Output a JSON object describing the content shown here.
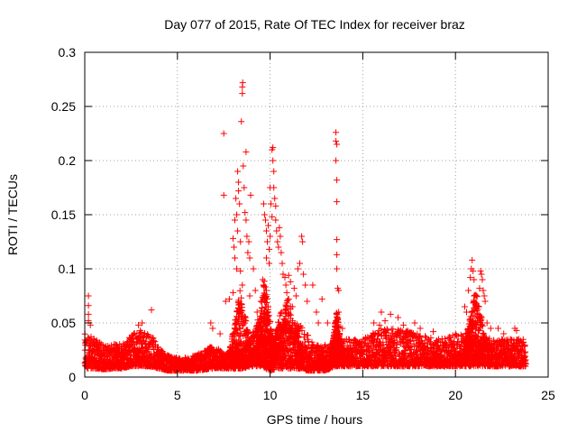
{
  "chart_data": {
    "type": "scatter",
    "title": "Day 077 of 2015, Rate Of TEC Index for receiver braz",
    "xlabel": "GPS time / hours",
    "ylabel": "ROTI / TECUs",
    "xlim": [
      0,
      25
    ],
    "ylim": [
      0,
      0.3
    ],
    "x_ticks": [
      "0",
      "5",
      "10",
      "15",
      "20",
      "25"
    ],
    "y_ticks": [
      "0",
      "0.05",
      "0.1",
      "0.15",
      "0.2",
      "0.25",
      "0.3"
    ],
    "grid": true,
    "marker": "+",
    "color": "#ff0000",
    "baseline_envelope": [
      {
        "x": 0.0,
        "low": 0.008,
        "high": 0.04
      },
      {
        "x": 0.5,
        "low": 0.008,
        "high": 0.036
      },
      {
        "x": 1.0,
        "low": 0.007,
        "high": 0.03
      },
      {
        "x": 1.5,
        "low": 0.008,
        "high": 0.03
      },
      {
        "x": 2.0,
        "low": 0.008,
        "high": 0.032
      },
      {
        "x": 2.5,
        "low": 0.01,
        "high": 0.04
      },
      {
        "x": 3.0,
        "low": 0.01,
        "high": 0.045
      },
      {
        "x": 3.5,
        "low": 0.01,
        "high": 0.04
      },
      {
        "x": 4.0,
        "low": 0.008,
        "high": 0.03
      },
      {
        "x": 4.5,
        "low": 0.006,
        "high": 0.02
      },
      {
        "x": 5.0,
        "low": 0.006,
        "high": 0.018
      },
      {
        "x": 5.5,
        "low": 0.006,
        "high": 0.018
      },
      {
        "x": 6.0,
        "low": 0.006,
        "high": 0.02
      },
      {
        "x": 6.5,
        "low": 0.007,
        "high": 0.025
      },
      {
        "x": 7.0,
        "low": 0.008,
        "high": 0.03
      },
      {
        "x": 7.5,
        "low": 0.008,
        "high": 0.022
      },
      {
        "x": 8.0,
        "low": 0.008,
        "high": 0.025
      },
      {
        "x": 8.5,
        "low": 0.008,
        "high": 0.025
      },
      {
        "x": 9.0,
        "low": 0.01,
        "high": 0.04
      },
      {
        "x": 9.5,
        "low": 0.01,
        "high": 0.06
      },
      {
        "x": 10.0,
        "low": 0.006,
        "high": 0.035
      },
      {
        "x": 10.5,
        "low": 0.008,
        "high": 0.05
      },
      {
        "x": 11.0,
        "low": 0.008,
        "high": 0.06
      },
      {
        "x": 11.5,
        "low": 0.008,
        "high": 0.05
      },
      {
        "x": 12.0,
        "low": 0.006,
        "high": 0.04
      },
      {
        "x": 12.5,
        "low": 0.006,
        "high": 0.03
      },
      {
        "x": 13.0,
        "low": 0.006,
        "high": 0.03
      },
      {
        "x": 13.5,
        "low": 0.01,
        "high": 0.035
      },
      {
        "x": 14.0,
        "low": 0.01,
        "high": 0.035
      },
      {
        "x": 15.0,
        "low": 0.01,
        "high": 0.035
      },
      {
        "x": 16.0,
        "low": 0.01,
        "high": 0.045
      },
      {
        "x": 17.0,
        "low": 0.01,
        "high": 0.045
      },
      {
        "x": 18.0,
        "low": 0.01,
        "high": 0.04
      },
      {
        "x": 19.0,
        "low": 0.01,
        "high": 0.035
      },
      {
        "x": 20.0,
        "low": 0.01,
        "high": 0.04
      },
      {
        "x": 21.0,
        "low": 0.01,
        "high": 0.04
      },
      {
        "x": 22.0,
        "low": 0.01,
        "high": 0.035
      },
      {
        "x": 23.0,
        "low": 0.01,
        "high": 0.035
      },
      {
        "x": 23.8,
        "low": 0.01,
        "high": 0.035
      }
    ],
    "outlier_points": [
      [
        0.2,
        0.075
      ],
      [
        0.2,
        0.066
      ],
      [
        0.2,
        0.058
      ],
      [
        0.2,
        0.052
      ],
      [
        0.3,
        0.048
      ],
      [
        3.6,
        0.062
      ],
      [
        3.1,
        0.05
      ],
      [
        2.9,
        0.048
      ],
      [
        6.8,
        0.05
      ],
      [
        6.9,
        0.045
      ],
      [
        7.3,
        0.04
      ],
      [
        7.5,
        0.225
      ],
      [
        7.5,
        0.168
      ],
      [
        7.6,
        0.07
      ],
      [
        7.8,
        0.072
      ],
      [
        8.0,
        0.078
      ],
      [
        8.0,
        0.128
      ],
      [
        8.05,
        0.12
      ],
      [
        8.1,
        0.145
      ],
      [
        8.1,
        0.11
      ],
      [
        8.15,
        0.165
      ],
      [
        8.2,
        0.15
      ],
      [
        8.2,
        0.1
      ],
      [
        8.25,
        0.19
      ],
      [
        8.25,
        0.135
      ],
      [
        8.3,
        0.18
      ],
      [
        8.3,
        0.172
      ],
      [
        8.35,
        0.16
      ],
      [
        8.4,
        0.125
      ],
      [
        8.4,
        0.098
      ],
      [
        8.45,
        0.236
      ],
      [
        8.5,
        0.262
      ],
      [
        8.5,
        0.268
      ],
      [
        8.52,
        0.272
      ],
      [
        8.55,
        0.195
      ],
      [
        8.6,
        0.175
      ],
      [
        8.65,
        0.152
      ],
      [
        8.7,
        0.208
      ],
      [
        8.7,
        0.145
      ],
      [
        8.75,
        0.13
      ],
      [
        8.8,
        0.115
      ],
      [
        8.85,
        0.125
      ],
      [
        8.9,
        0.11
      ],
      [
        8.95,
        0.168
      ],
      [
        8.5,
        0.085
      ],
      [
        8.9,
        0.075
      ],
      [
        9.1,
        0.1
      ],
      [
        9.2,
        0.08
      ],
      [
        9.3,
        0.06
      ],
      [
        9.5,
        0.07
      ],
      [
        9.6,
        0.09
      ],
      [
        9.65,
        0.085
      ],
      [
        9.7,
        0.075
      ],
      [
        9.8,
        0.08
      ],
      [
        9.9,
        0.065
      ],
      [
        9.95,
        0.118
      ],
      [
        9.8,
        0.11
      ],
      [
        9.65,
        0.16
      ],
      [
        9.7,
        0.15
      ],
      [
        9.75,
        0.145
      ],
      [
        9.8,
        0.135
      ],
      [
        9.85,
        0.125
      ],
      [
        9.9,
        0.14
      ],
      [
        9.95,
        0.105
      ],
      [
        10.0,
        0.175
      ],
      [
        10.0,
        0.13
      ],
      [
        10.05,
        0.16
      ],
      [
        10.1,
        0.148
      ],
      [
        10.1,
        0.21
      ],
      [
        10.15,
        0.212
      ],
      [
        10.15,
        0.2
      ],
      [
        10.2,
        0.19
      ],
      [
        10.2,
        0.175
      ],
      [
        10.25,
        0.165
      ],
      [
        10.3,
        0.158
      ],
      [
        10.3,
        0.145
      ],
      [
        10.35,
        0.135
      ],
      [
        10.4,
        0.125
      ],
      [
        10.45,
        0.12
      ],
      [
        10.5,
        0.138
      ],
      [
        10.55,
        0.13
      ],
      [
        10.6,
        0.115
      ],
      [
        10.65,
        0.105
      ],
      [
        10.7,
        0.095
      ],
      [
        10.8,
        0.092
      ],
      [
        10.85,
        0.085
      ],
      [
        10.9,
        0.078
      ],
      [
        11.0,
        0.094
      ],
      [
        11.0,
        0.072
      ],
      [
        11.1,
        0.088
      ],
      [
        11.2,
        0.065
      ],
      [
        11.3,
        0.082
      ],
      [
        11.4,
        0.075
      ],
      [
        11.5,
        0.1
      ],
      [
        11.6,
        0.105
      ],
      [
        11.7,
        0.13
      ],
      [
        11.75,
        0.125
      ],
      [
        11.8,
        0.095
      ],
      [
        11.9,
        0.085
      ],
      [
        12.0,
        0.07
      ],
      [
        12.3,
        0.085
      ],
      [
        12.5,
        0.06
      ],
      [
        12.8,
        0.072
      ],
      [
        12.6,
        0.05
      ],
      [
        13.1,
        0.05
      ],
      [
        13.55,
        0.226
      ],
      [
        13.55,
        0.218
      ],
      [
        13.6,
        0.215
      ],
      [
        13.55,
        0.2
      ],
      [
        13.6,
        0.182
      ],
      [
        13.6,
        0.162
      ],
      [
        13.6,
        0.127
      ],
      [
        13.6,
        0.113
      ],
      [
        13.6,
        0.1
      ],
      [
        13.65,
        0.082
      ],
      [
        13.7,
        0.08
      ],
      [
        13.7,
        0.06
      ],
      [
        13.5,
        0.05
      ],
      [
        13.9,
        0.045
      ],
      [
        15.6,
        0.05
      ],
      [
        15.9,
        0.048
      ],
      [
        16.0,
        0.06
      ],
      [
        16.2,
        0.052
      ],
      [
        16.5,
        0.058
      ],
      [
        16.9,
        0.055
      ],
      [
        17.2,
        0.048
      ],
      [
        17.8,
        0.05
      ],
      [
        18.1,
        0.045
      ],
      [
        18.8,
        0.042
      ],
      [
        20.5,
        0.065
      ],
      [
        20.6,
        0.06
      ],
      [
        20.7,
        0.08
      ],
      [
        20.8,
        0.092
      ],
      [
        20.85,
        0.1
      ],
      [
        20.9,
        0.108
      ],
      [
        20.95,
        0.098
      ],
      [
        21.0,
        0.09
      ],
      [
        21.0,
        0.075
      ],
      [
        21.1,
        0.065
      ],
      [
        21.2,
        0.058
      ],
      [
        21.3,
        0.082
      ],
      [
        21.35,
        0.098
      ],
      [
        21.4,
        0.095
      ],
      [
        21.45,
        0.09
      ],
      [
        21.5,
        0.08
      ],
      [
        21.55,
        0.075
      ],
      [
        21.6,
        0.07
      ],
      [
        21.7,
        0.05
      ],
      [
        21.9,
        0.045
      ],
      [
        22.3,
        0.045
      ],
      [
        22.6,
        0.04
      ],
      [
        23.2,
        0.045
      ],
      [
        23.3,
        0.043
      ]
    ],
    "series_extent": [
      0,
      23.8
    ]
  }
}
